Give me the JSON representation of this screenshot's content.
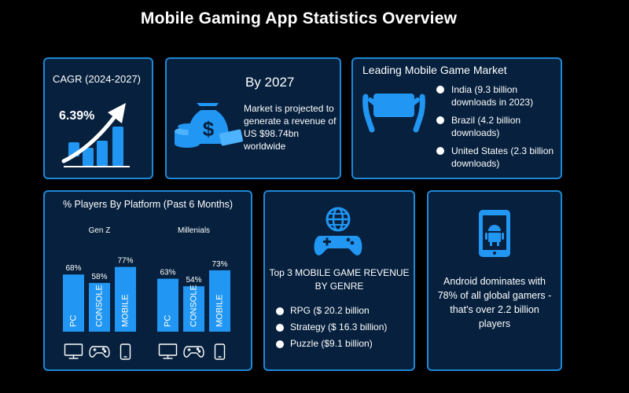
{
  "title": "Mobile Gaming App Statistics Overview",
  "colors": {
    "card_bg": "#06203d",
    "card_border": "#1e88d6",
    "bar": "#2196f3",
    "background": "#000000"
  },
  "cagr": {
    "label": "CAGR (2024-2027)",
    "value": "6.39%",
    "icon": "growth-bars-arrow-icon"
  },
  "projection": {
    "title": "By 2027",
    "text": "Market is projected to generate a revenue of US $98.74bn worldwide",
    "icon": "money-bag-icon"
  },
  "market": {
    "title": "Leading Mobile Game Market",
    "icon": "hands-holding-phone-icon",
    "items": [
      "India (9.3 billion downloads in 2023)",
      "Brazil (4.2 billion downloads)",
      "United States (2.3 billion downloads)"
    ]
  },
  "platform": {
    "title": "% Players By Platform (Past 6 Months)"
  },
  "genre": {
    "title": "Top 3 MOBILE GAME REVENUE BY GENRE",
    "icon": "globe-gamepad-icon",
    "items": [
      "RPG ($ 20.2 billion",
      "Strategy ($ 16.3 billion)",
      "Puzzle ($9.1 billion)"
    ]
  },
  "android": {
    "text": "Android dominates with 78% of all global gamers - that's over 2.2 billion players",
    "icon": "android-phone-icon"
  },
  "chart_data": {
    "type": "bar",
    "title": "% Players By Platform (Past 6 Months)",
    "categories": [
      "PC",
      "CONSOLE",
      "MOBILE"
    ],
    "category_icons": [
      "monitor-icon",
      "gamepad-icon",
      "phone-icon"
    ],
    "series": [
      {
        "name": "Gen Z",
        "values": [
          68,
          58,
          77
        ],
        "labels": [
          "68%",
          "58%",
          "77%"
        ]
      },
      {
        "name": "Millenials",
        "values": [
          63,
          54,
          73
        ],
        "labels": [
          "63%",
          "54%",
          "73%"
        ]
      }
    ],
    "ylim": [
      0,
      100
    ],
    "grid": false,
    "legend": "none"
  }
}
